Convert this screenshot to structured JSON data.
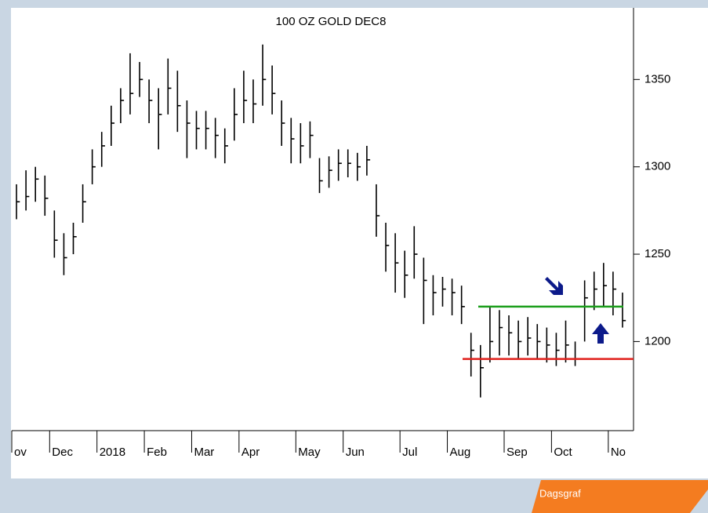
{
  "chart_data": {
    "type": "hlc",
    "title": "100 OZ GOLD DEC8",
    "color": "#000000",
    "high": [
      1290,
      1298,
      1300,
      1295,
      1275,
      1262,
      1268,
      1290,
      1310,
      1320,
      1335,
      1345,
      1365,
      1360,
      1350,
      1345,
      1362,
      1355,
      1338,
      1332,
      1332,
      1328,
      1322,
      1345,
      1355,
      1350,
      1370,
      1358,
      1338,
      1328,
      1325,
      1326,
      1305,
      1306,
      1310,
      1310,
      1308,
      1312,
      1290,
      1268,
      1262,
      1252,
      1266,
      1248,
      1238,
      1237,
      1236,
      1232,
      1205,
      1198,
      1220,
      1218,
      1215,
      1212,
      1214,
      1210,
      1208,
      1205,
      1212,
      1200,
      1235,
      1240,
      1245,
      1240,
      1228
    ],
    "low": [
      1270,
      1275,
      1280,
      1272,
      1248,
      1238,
      1250,
      1268,
      1290,
      1300,
      1312,
      1325,
      1330,
      1340,
      1325,
      1310,
      1330,
      1320,
      1305,
      1310,
      1310,
      1305,
      1302,
      1315,
      1325,
      1325,
      1335,
      1330,
      1312,
      1302,
      1302,
      1305,
      1285,
      1288,
      1292,
      1294,
      1292,
      1295,
      1260,
      1240,
      1228,
      1225,
      1236,
      1210,
      1215,
      1220,
      1215,
      1210,
      1180,
      1168,
      1188,
      1192,
      1192,
      1190,
      1192,
      1190,
      1188,
      1186,
      1188,
      1186,
      1200,
      1218,
      1220,
      1215,
      1208
    ],
    "close": [
      1280,
      1283,
      1293,
      1282,
      1258,
      1248,
      1260,
      1280,
      1300,
      1312,
      1325,
      1338,
      1342,
      1350,
      1338,
      1330,
      1345,
      1335,
      1325,
      1322,
      1322,
      1318,
      1312,
      1330,
      1338,
      1336,
      1350,
      1342,
      1325,
      1316,
      1312,
      1318,
      1292,
      1298,
      1302,
      1302,
      1300,
      1304,
      1272,
      1255,
      1245,
      1238,
      1250,
      1235,
      1228,
      1230,
      1228,
      1220,
      1195,
      1185,
      1200,
      1208,
      1205,
      1200,
      1202,
      1200,
      1198,
      1195,
      1198,
      1190,
      1225,
      1230,
      1232,
      1230,
      1212
    ],
    "xlim": [
      0,
      65
    ],
    "xticks": [
      {
        "value": 0,
        "label": "ov"
      },
      {
        "value": 4,
        "label": "Dec"
      },
      {
        "value": 9,
        "label": "2018"
      },
      {
        "value": 14,
        "label": "Feb"
      },
      {
        "value": 19,
        "label": "Mar"
      },
      {
        "value": 24,
        "label": "Apr"
      },
      {
        "value": 30,
        "label": "May"
      },
      {
        "value": 35,
        "label": "Jun"
      },
      {
        "value": 41,
        "label": "Jul"
      },
      {
        "value": 46,
        "label": "Aug"
      },
      {
        "value": 52,
        "label": "Sep"
      },
      {
        "value": 57,
        "label": "Oct"
      },
      {
        "value": 63,
        "label": "No"
      }
    ],
    "ylim": [
      1149,
      1391
    ],
    "yticks": [
      1200,
      1250,
      1300,
      1350
    ],
    "levels": [
      {
        "value": 1220,
        "color": "#1a9e1a"
      },
      {
        "value": 1190,
        "color": "#e0201b"
      }
    ],
    "footer": "Dagsgraf"
  }
}
